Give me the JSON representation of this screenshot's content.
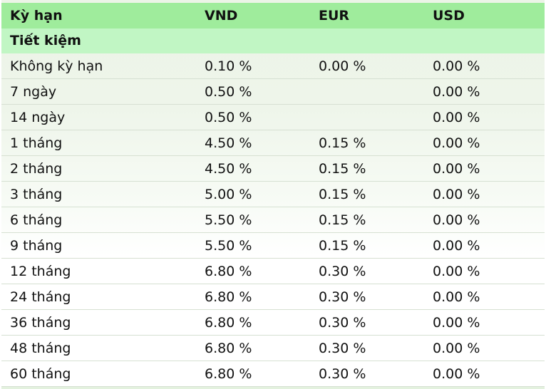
{
  "table": {
    "headers": [
      "Kỳ hạn",
      "VND",
      "EUR",
      "USD"
    ],
    "section_title": "Tiết kiệm",
    "rows": [
      {
        "term": "Không kỳ hạn",
        "vnd": "0.10 %",
        "eur": "0.00 %",
        "usd": "0.00 %"
      },
      {
        "term": "7 ngày",
        "vnd": "0.50 %",
        "eur": "",
        "usd": "0.00 %"
      },
      {
        "term": "14 ngày",
        "vnd": "0.50 %",
        "eur": "",
        "usd": "0.00 %"
      },
      {
        "term": "1 tháng",
        "vnd": "4.50 %",
        "eur": "0.15 %",
        "usd": "0.00 %"
      },
      {
        "term": "2 tháng",
        "vnd": "4.50 %",
        "eur": "0.15 %",
        "usd": "0.00 %"
      },
      {
        "term": "3 tháng",
        "vnd": "5.00 %",
        "eur": "0.15 %",
        "usd": "0.00 %"
      },
      {
        "term": "6 tháng",
        "vnd": "5.50 %",
        "eur": "0.15 %",
        "usd": "0.00 %"
      },
      {
        "term": "9 tháng",
        "vnd": "5.50 %",
        "eur": "0.15 %",
        "usd": "0.00 %"
      },
      {
        "term": "12 tháng",
        "vnd": "6.80 %",
        "eur": "0.30 %",
        "usd": "0.00 %"
      },
      {
        "term": "24 tháng",
        "vnd": "6.80 %",
        "eur": "0.30 %",
        "usd": "0.00 %"
      },
      {
        "term": "36 tháng",
        "vnd": "6.80 %",
        "eur": "0.30 %",
        "usd": "0.00 %"
      },
      {
        "term": "48 tháng",
        "vnd": "6.80 %",
        "eur": "0.30 %",
        "usd": "0.00 %"
      },
      {
        "term": "60 tháng",
        "vnd": "6.80 %",
        "eur": "0.30 %",
        "usd": "0.00 %"
      }
    ]
  },
  "colors": {
    "header_bg": "#9fec9c",
    "section_bg": "#c1f6c4",
    "row_border": "#d6e0d2"
  }
}
